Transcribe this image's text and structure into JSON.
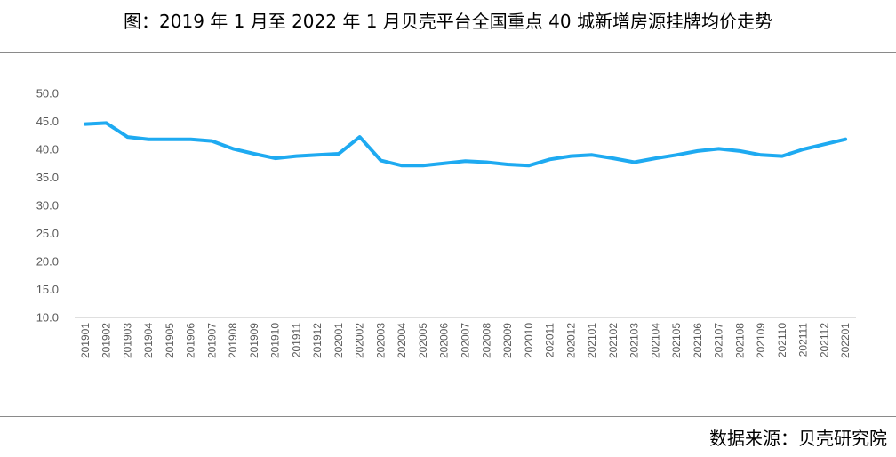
{
  "header": {
    "title": "图：2019 年 1 月至 2022 年 1 月贝壳平台全国重点 40 城新增房源挂牌均价走势"
  },
  "footer": {
    "source": "数据来源：贝壳研究院"
  },
  "colors": {
    "line": "#1EAAF1",
    "axis": "#bfbfbf",
    "tick_text": "#595959"
  },
  "chart_data": {
    "type": "line",
    "title": "",
    "xlabel": "",
    "ylabel": "",
    "ylim": [
      10,
      50
    ],
    "yticks": [
      "10.0",
      "15.0",
      "20.0",
      "25.0",
      "30.0",
      "35.0",
      "40.0",
      "45.0",
      "50.0"
    ],
    "grid": false,
    "categories": [
      "201901",
      "201902",
      "201903",
      "201904",
      "201905",
      "201906",
      "201907",
      "201908",
      "201909",
      "201910",
      "201911",
      "201912",
      "202001",
      "202002",
      "202003",
      "202004",
      "202005",
      "202006",
      "202007",
      "202008",
      "202009",
      "202010",
      "202011",
      "202012",
      "202101",
      "202102",
      "202103",
      "202104",
      "202105",
      "202106",
      "202107",
      "202108",
      "202109",
      "202110",
      "202111",
      "202112",
      "202201"
    ],
    "series": [
      {
        "values": [
          44.5,
          44.7,
          42.2,
          41.8,
          41.8,
          41.8,
          41.5,
          40.1,
          39.2,
          38.4,
          38.8,
          39.0,
          39.2,
          42.2,
          38.0,
          37.1,
          37.1,
          37.5,
          37.9,
          37.7,
          37.3,
          37.1,
          38.2,
          38.8,
          39.0,
          38.4,
          37.7,
          38.4,
          39.0,
          39.7,
          40.1,
          39.7,
          39.0,
          38.8,
          40.0,
          40.9,
          41.8
        ]
      }
    ]
  }
}
